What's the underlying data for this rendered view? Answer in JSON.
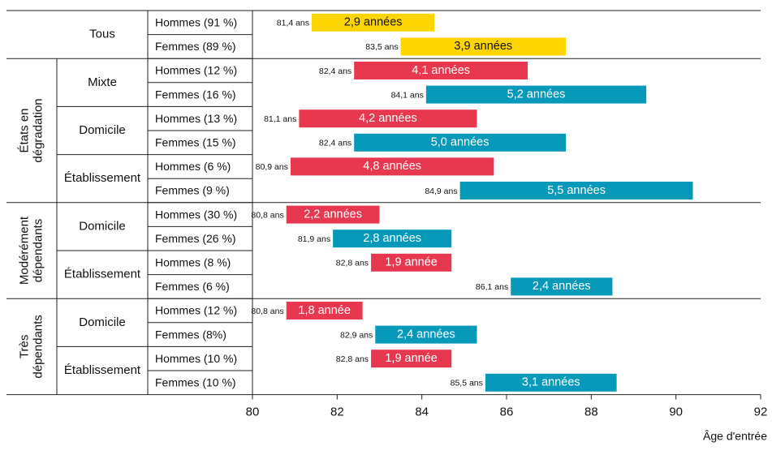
{
  "chart_data": {
    "type": "bar",
    "subtype": "floating-horizontal-bar",
    "xlabel": "Âge d'entrée",
    "xlim": [
      80,
      92
    ],
    "xticks": [
      80,
      82,
      84,
      86,
      88,
      90,
      92
    ],
    "colors": {
      "total": "#ffd500",
      "hommes": "#e8384f",
      "femmes": "#0799b9"
    },
    "groups": [
      {
        "label": "",
        "subgroups": [
          {
            "label": "Tous",
            "rows": [
              {
                "label": "Hommes (91 %)",
                "start": 81.4,
                "start_label": "81,4 ans",
                "duration": 2.9,
                "duration_label": "2,9 années",
                "series": "total"
              },
              {
                "label": "Femmes (89 %)",
                "start": 83.5,
                "start_label": "83,5 ans",
                "duration": 3.9,
                "duration_label": "3,9 années",
                "series": "total"
              }
            ]
          }
        ]
      },
      {
        "label": "États en dégradation",
        "label_lines": [
          "États en",
          "dégradation"
        ],
        "subgroups": [
          {
            "label": "Mixte",
            "rows": [
              {
                "label": "Hommes (12 %)",
                "start": 82.4,
                "start_label": "82,4 ans",
                "duration": 4.1,
                "duration_label": "4,1 années",
                "series": "hommes"
              },
              {
                "label": "Femmes (16 %)",
                "start": 84.1,
                "start_label": "84,1 ans",
                "duration": 5.2,
                "duration_label": "5,2 années",
                "series": "femmes"
              }
            ]
          },
          {
            "label": "Domicile",
            "rows": [
              {
                "label": "Hommes (13 %)",
                "start": 81.1,
                "start_label": "81,1 ans",
                "duration": 4.2,
                "duration_label": "4,2 années",
                "series": "hommes"
              },
              {
                "label": "Femmes (15 %)",
                "start": 82.4,
                "start_label": "82,4 ans",
                "duration": 5.0,
                "duration_label": "5,0 années",
                "series": "femmes"
              }
            ]
          },
          {
            "label": "Établissement",
            "rows": [
              {
                "label": "Hommes (6 %)",
                "start": 80.9,
                "start_label": "80,9 ans",
                "duration": 4.8,
                "duration_label": "4,8 années",
                "series": "hommes"
              },
              {
                "label": "Femmes (9 %)",
                "start": 84.9,
                "start_label": "84,9 ans",
                "duration": 5.5,
                "duration_label": "5,5 années",
                "series": "femmes"
              }
            ]
          }
        ]
      },
      {
        "label": "Modérément dépendants",
        "label_lines": [
          "Modérément",
          "dépendants"
        ],
        "subgroups": [
          {
            "label": "Domicile",
            "rows": [
              {
                "label": "Hommes (30 %)",
                "start": 80.8,
                "start_label": "80,8 ans",
                "duration": 2.2,
                "duration_label": "2,2 années",
                "series": "hommes"
              },
              {
                "label": "Femmes (26 %)",
                "start": 81.9,
                "start_label": "81,9 ans",
                "duration": 2.8,
                "duration_label": "2,8 années",
                "series": "femmes"
              }
            ]
          },
          {
            "label": "Établissement",
            "rows": [
              {
                "label": "Hommes (8 %)",
                "start": 82.8,
                "start_label": "82,8 ans",
                "duration": 1.9,
                "duration_label": "1,9 année",
                "series": "hommes"
              },
              {
                "label": "Femmes (6 %)",
                "start": 86.1,
                "start_label": "86,1 ans",
                "duration": 2.4,
                "duration_label": "2,4 années",
                "series": "femmes"
              }
            ]
          }
        ]
      },
      {
        "label": "Très dépendants",
        "label_lines": [
          "Très",
          "dépendants"
        ],
        "subgroups": [
          {
            "label": "Domicile",
            "rows": [
              {
                "label": "Hommes (12 %)",
                "start": 80.8,
                "start_label": "80,8 ans",
                "duration": 1.8,
                "duration_label": "1,8 année",
                "series": "hommes"
              },
              {
                "label": "Femmes (8%)",
                "start": 82.9,
                "start_label": "82,9 ans",
                "duration": 2.4,
                "duration_label": "2,4 années",
                "series": "femmes"
              }
            ]
          },
          {
            "label": "Établissement",
            "rows": [
              {
                "label": "Hommes (10 %)",
                "start": 82.8,
                "start_label": "82,8 ans",
                "duration": 1.9,
                "duration_label": "1,9 année",
                "series": "hommes"
              },
              {
                "label": "Femmes (10 %)",
                "start": 85.5,
                "start_label": "85,5 ans",
                "duration": 3.1,
                "duration_label": "3,1 années",
                "series": "femmes"
              }
            ]
          }
        ]
      }
    ]
  }
}
